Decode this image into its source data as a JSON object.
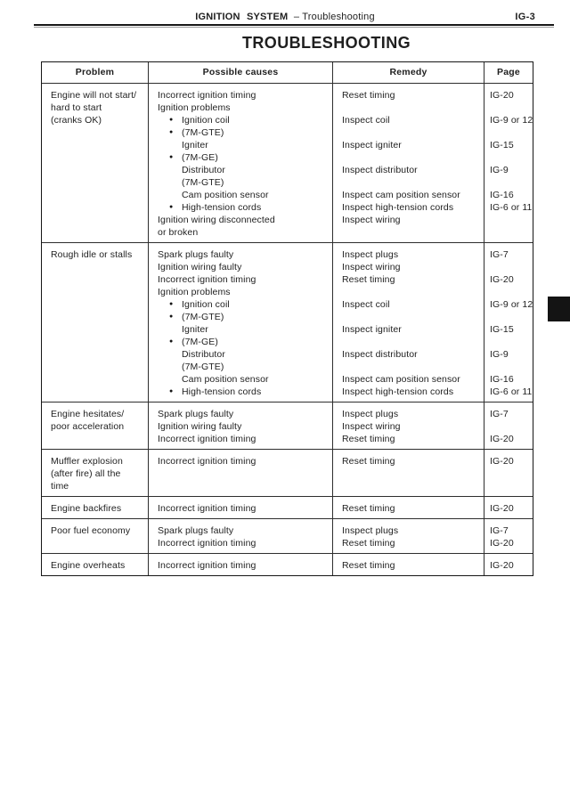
{
  "header": {
    "system": "IGNITION SYSTEM",
    "section": "– Troubleshooting",
    "page_number": "IG-3"
  },
  "title": "TROUBLESHOOTING",
  "table": {
    "columns": [
      "Problem",
      "Possible causes",
      "Remedy",
      "Page"
    ],
    "rows": [
      {
        "problem": [
          "Engine will not start/",
          "hard to start",
          "(cranks OK)"
        ],
        "lines": [
          {
            "cause": "Incorrect ignition timing",
            "indent": 0,
            "bullet": false,
            "remedy": "Reset timing",
            "page": "IG-20"
          },
          {
            "cause": "Ignition problems",
            "indent": 0,
            "bullet": false,
            "remedy": "",
            "page": ""
          },
          {
            "cause": "Ignition coil",
            "indent": 1,
            "bullet": true,
            "remedy": "Inspect coil",
            "page": "IG-9 or 12"
          },
          {
            "cause": "(7M-GTE)",
            "indent": 1,
            "bullet": true,
            "remedy": "",
            "page": ""
          },
          {
            "cause": "Igniter",
            "indent": 1,
            "bullet": false,
            "remedy": "Inspect igniter",
            "page": "IG-15"
          },
          {
            "cause": "(7M-GE)",
            "indent": 1,
            "bullet": true,
            "remedy": "",
            "page": ""
          },
          {
            "cause": "Distributor",
            "indent": 1,
            "bullet": false,
            "remedy": "Inspect distributor",
            "page": "IG-9"
          },
          {
            "cause": "(7M-GTE)",
            "indent": 1,
            "bullet": false,
            "remedy": "",
            "page": ""
          },
          {
            "cause": "Cam position sensor",
            "indent": 1,
            "bullet": false,
            "remedy": "Inspect cam position sensor",
            "page": "IG-16"
          },
          {
            "cause": "High-tension cords",
            "indent": 1,
            "bullet": true,
            "remedy": "Inspect high-tension cords",
            "page": "IG-6 or 11"
          },
          {
            "cause": "Ignition wiring disconnected",
            "indent": 0,
            "bullet": false,
            "remedy": "Inspect wiring",
            "page": ""
          },
          {
            "cause": "or broken",
            "indent": 0,
            "bullet": false,
            "remedy": "",
            "page": ""
          }
        ]
      },
      {
        "problem": [
          "Rough idle or stalls"
        ],
        "lines": [
          {
            "cause": "Spark plugs faulty",
            "indent": 0,
            "bullet": false,
            "remedy": "Inspect plugs",
            "page": "IG-7"
          },
          {
            "cause": "Ignition wiring faulty",
            "indent": 0,
            "bullet": false,
            "remedy": "Inspect wiring",
            "page": ""
          },
          {
            "cause": "Incorrect ignition timing",
            "indent": 0,
            "bullet": false,
            "remedy": "Reset timing",
            "page": "IG-20"
          },
          {
            "cause": "Ignition problems",
            "indent": 0,
            "bullet": false,
            "remedy": "",
            "page": ""
          },
          {
            "cause": "Ignition coil",
            "indent": 1,
            "bullet": true,
            "remedy": "Inspect coil",
            "page": "IG-9 or 12"
          },
          {
            "cause": "(7M-GTE)",
            "indent": 1,
            "bullet": true,
            "remedy": "",
            "page": ""
          },
          {
            "cause": "Igniter",
            "indent": 1,
            "bullet": false,
            "remedy": "Inspect igniter",
            "page": "IG-15"
          },
          {
            "cause": "(7M-GE)",
            "indent": 1,
            "bullet": true,
            "remedy": "",
            "page": ""
          },
          {
            "cause": "Distributor",
            "indent": 1,
            "bullet": false,
            "remedy": "Inspect distributor",
            "page": "IG-9"
          },
          {
            "cause": "(7M-GTE)",
            "indent": 1,
            "bullet": false,
            "remedy": "",
            "page": ""
          },
          {
            "cause": "Cam position sensor",
            "indent": 1,
            "bullet": false,
            "remedy": "Inspect cam position sensor",
            "page": "IG-16"
          },
          {
            "cause": "High-tension cords",
            "indent": 1,
            "bullet": true,
            "remedy": "Inspect high-tension cords",
            "page": "IG-6 or 11"
          }
        ]
      },
      {
        "problem": [
          "Engine hesitates/",
          "poor acceleration"
        ],
        "lines": [
          {
            "cause": "Spark plugs faulty",
            "indent": 0,
            "bullet": false,
            "remedy": "Inspect plugs",
            "page": "IG-7"
          },
          {
            "cause": "Ignition wiring faulty",
            "indent": 0,
            "bullet": false,
            "remedy": "Inspect wiring",
            "page": ""
          },
          {
            "cause": "Incorrect ignition timing",
            "indent": 0,
            "bullet": false,
            "remedy": "Reset timing",
            "page": "IG-20"
          }
        ]
      },
      {
        "problem": [
          "Muffler explosion",
          "(after fire) all the",
          "time"
        ],
        "lines": [
          {
            "cause": "Incorrect ignition timing",
            "indent": 0,
            "bullet": false,
            "remedy": "Reset timing",
            "page": "IG-20"
          }
        ]
      },
      {
        "problem": [
          "Engine backfires"
        ],
        "lines": [
          {
            "cause": "Incorrect ignition timing",
            "indent": 0,
            "bullet": false,
            "remedy": "Reset timing",
            "page": "IG-20"
          }
        ]
      },
      {
        "problem": [
          "Poor fuel economy"
        ],
        "lines": [
          {
            "cause": "Spark plugs faulty",
            "indent": 0,
            "bullet": false,
            "remedy": "Inspect plugs",
            "page": "IG-7"
          },
          {
            "cause": "Incorrect ignition timing",
            "indent": 0,
            "bullet": false,
            "remedy": "Reset timing",
            "page": "IG-20"
          }
        ]
      },
      {
        "problem": [
          "Engine overheats"
        ],
        "lines": [
          {
            "cause": "Incorrect ignition timing",
            "indent": 0,
            "bullet": false,
            "remedy": "Reset timing",
            "page": "IG-20"
          }
        ]
      }
    ]
  },
  "icons": {
    "bullet": "●"
  },
  "colors": {
    "ink": "#1f1f1f",
    "edge_tab": "#141414"
  }
}
